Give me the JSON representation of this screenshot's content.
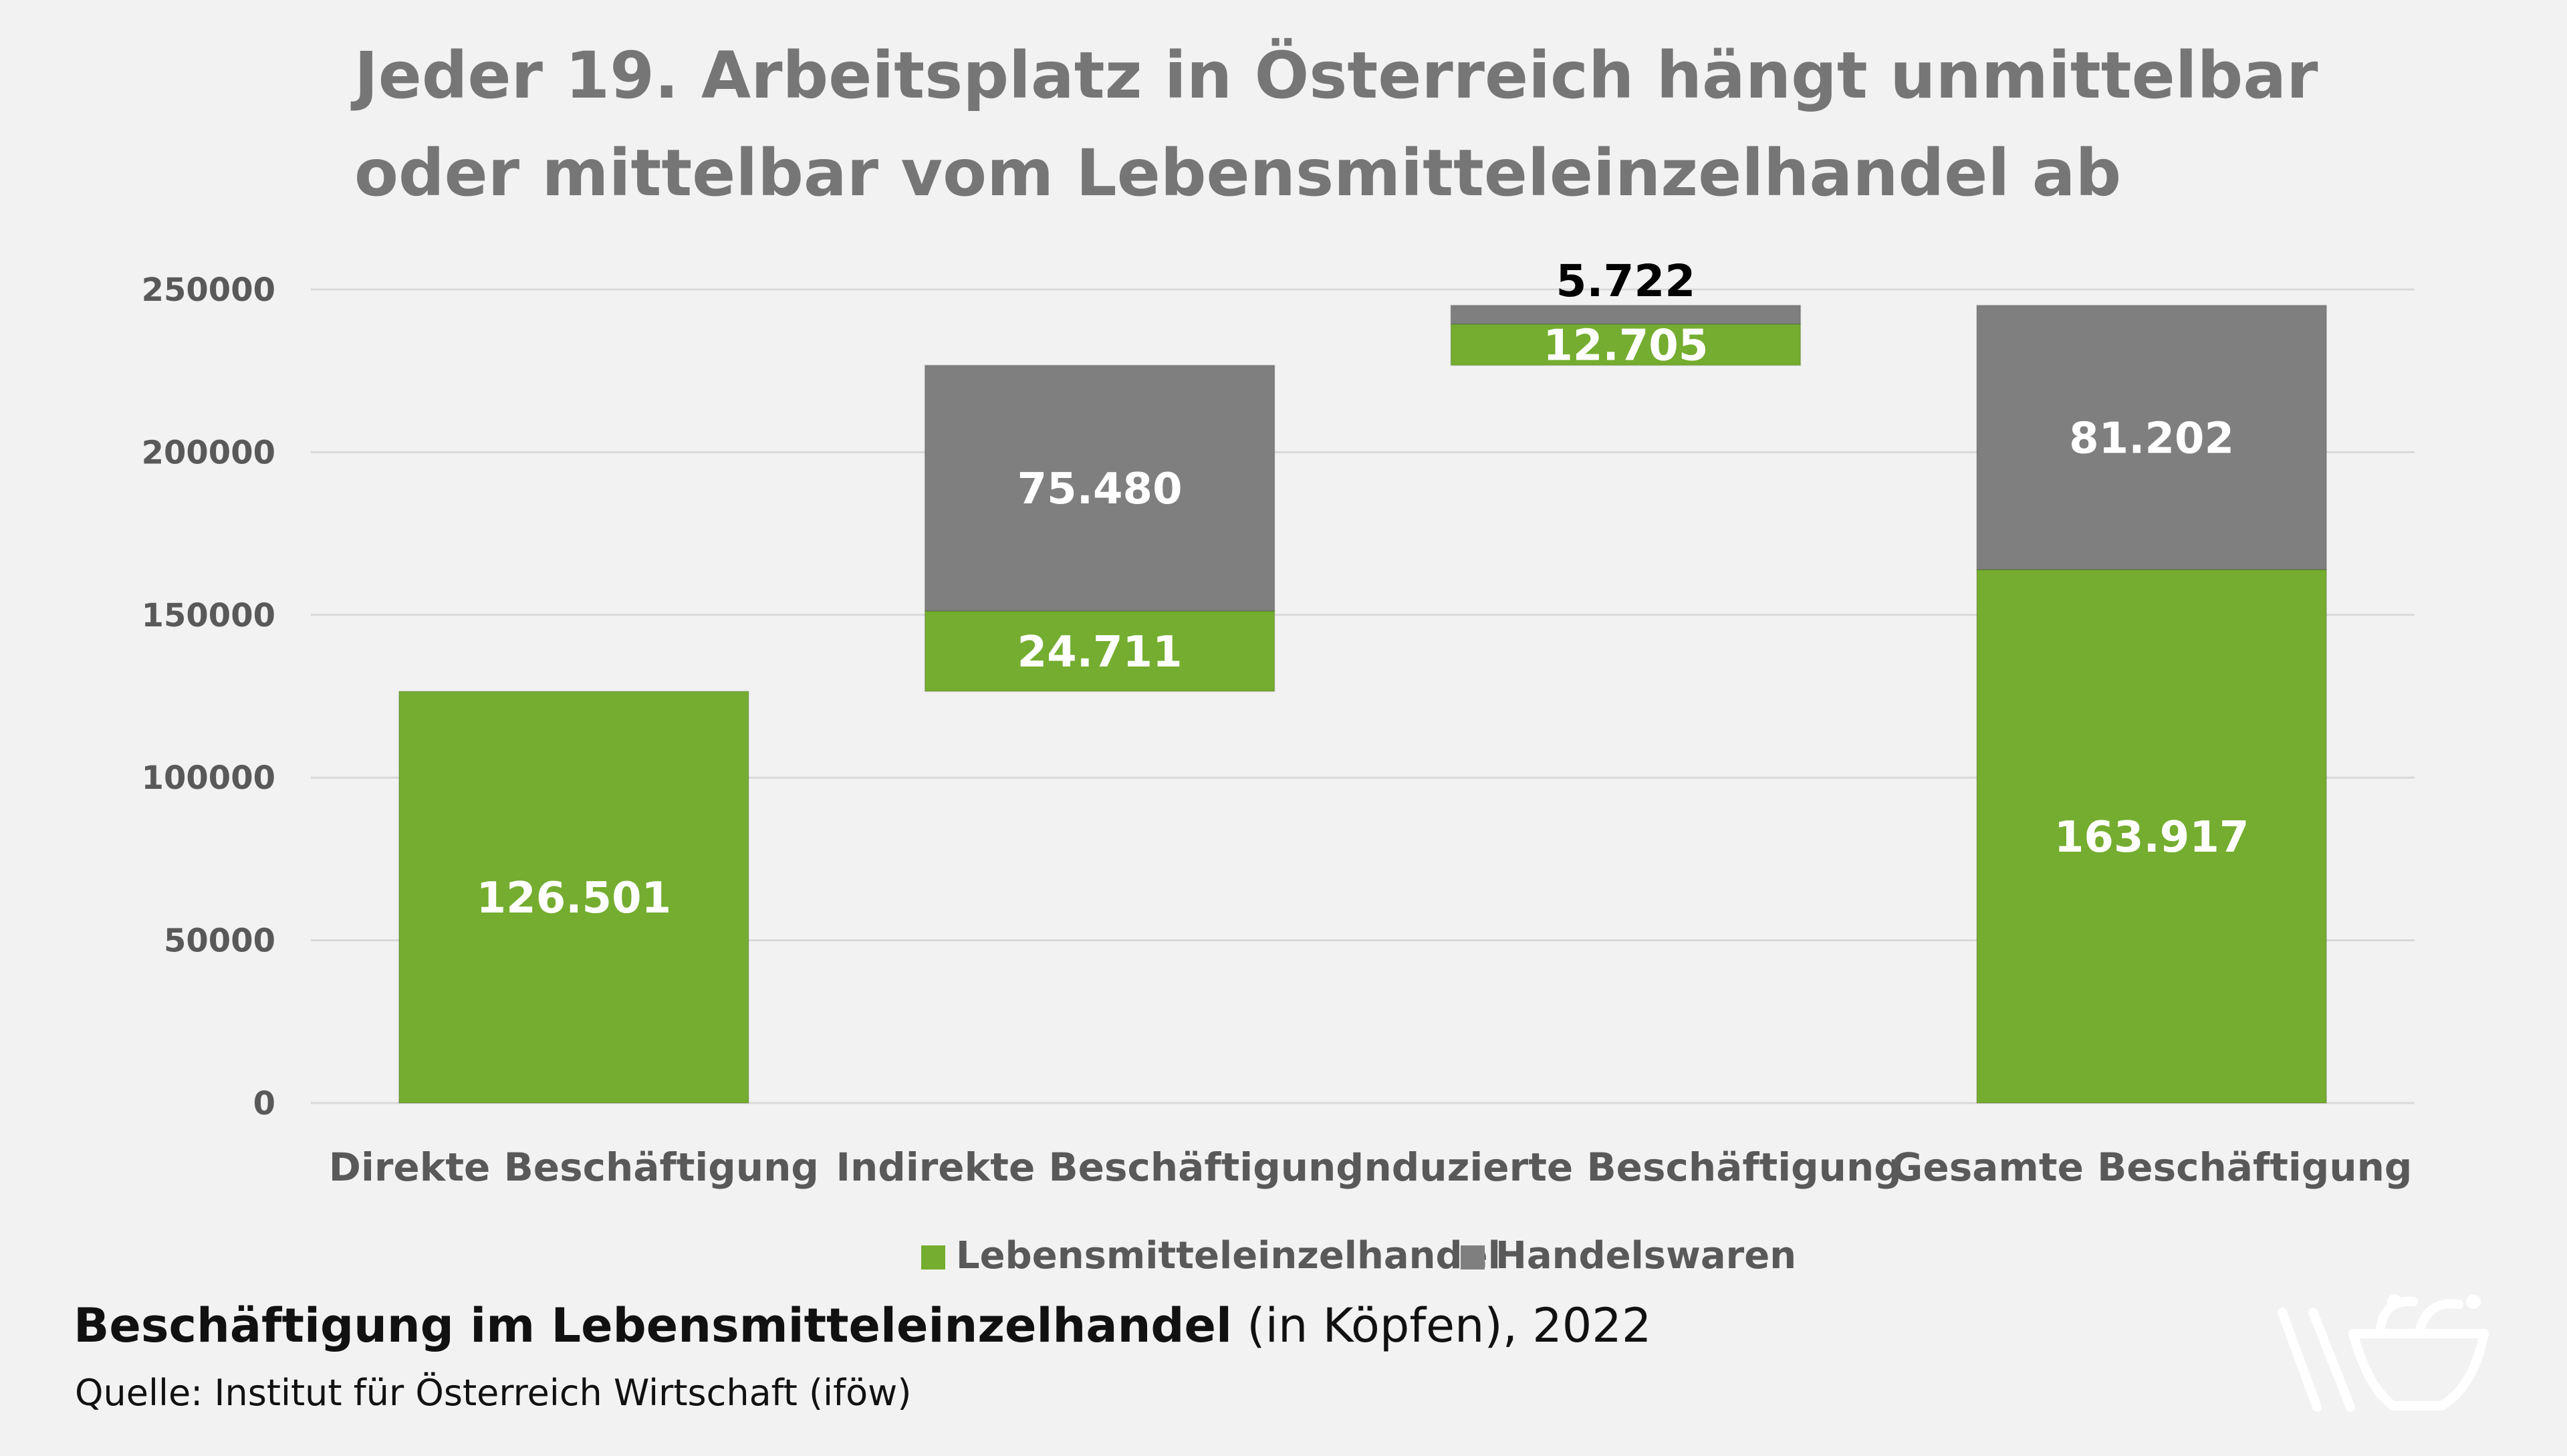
{
  "title_line1": "Jeder 19. Arbeitsplatz in Österreich hängt unmittelbar",
  "title_line2": "oder mittelbar vom Lebensmitteleinzelhandel ab",
  "footer": {
    "subject": "Beschäftigung im Lebensmitteleinzelhandel",
    "detail": " (in Köpfen), 2022",
    "source": "Quelle: Institut für Österreich Wirtschaft (iföw)"
  },
  "logo": {
    "icon": "shopping-basket-logo-icon"
  },
  "colors": {
    "background": "#f2f2f2",
    "green": "#74ad2f",
    "gray": "#7f7f7f",
    "grid": "#d9d9d9",
    "axis_text": "#595959",
    "title": "#767676"
  },
  "chart_data": {
    "type": "bar",
    "subtype": "stacked-waterfall",
    "categories": [
      "Direkte Beschäftigung",
      "Indirekte Beschäftigung",
      "Induzierte Beschäftigung",
      "Gesamte Beschäftigung"
    ],
    "series": [
      {
        "name": "Lebensmitteleinzelhandel",
        "color": "#74ad2f",
        "values": [
          126501,
          24711,
          12705,
          163917
        ],
        "labels": [
          "126.501",
          "24.711",
          "12.705",
          "163.917"
        ]
      },
      {
        "name": "Handelswaren",
        "color": "#7f7f7f",
        "values": [
          0,
          75480,
          5722,
          81202
        ],
        "labels": [
          "",
          "75.480",
          "5.722",
          "81.202"
        ]
      }
    ],
    "bar_bases": [
      0,
      126501,
      226692,
      0
    ],
    "yticks": [
      0,
      50000,
      100000,
      150000,
      200000,
      250000
    ],
    "ylim": [
      0,
      250000
    ],
    "grid": true,
    "legend_position": "bottom"
  }
}
